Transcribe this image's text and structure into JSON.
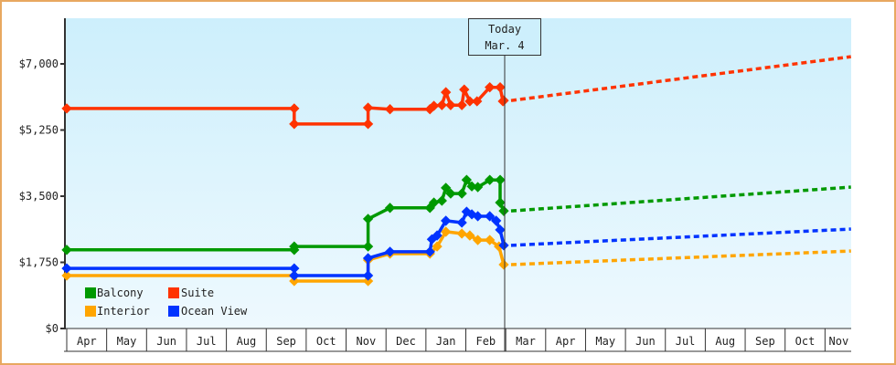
{
  "chart_data": {
    "type": "line",
    "title": "",
    "xlabel": "",
    "ylabel": "",
    "ylim": [
      0,
      7000
    ],
    "y_ticks": [
      {
        "value": 0,
        "label": "$0"
      },
      {
        "value": 1750,
        "label": "$1,750"
      },
      {
        "value": 3500,
        "label": "$3,500"
      },
      {
        "value": 5250,
        "label": "$5,250"
      },
      {
        "value": 7000,
        "label": "$7,000"
      }
    ],
    "x_ticks": [
      "Apr",
      "May",
      "Jun",
      "Jul",
      "Aug",
      "Sep",
      "Oct",
      "Nov",
      "Dec",
      "Jan",
      "Feb",
      "Mar",
      "Apr",
      "May",
      "Jun",
      "Jul",
      "Aug",
      "Sep",
      "Oct",
      "Nov"
    ],
    "x_range_months": [
      0,
      19.7
    ],
    "grid": false,
    "legend_position": "inside-bottom-left",
    "today_marker": {
      "line1": "Today",
      "line2": "Mar. 4",
      "x_month": 10.95
    },
    "colors": {
      "Balcony": "#009900",
      "Suite": "#ff3300",
      "Interior": "#ffa500",
      "Ocean View": "#0033ff"
    },
    "series": [
      {
        "name": "Suite",
        "step": true,
        "points": [
          [
            0,
            5820
          ],
          [
            5.7,
            5820
          ],
          [
            5.7,
            5410
          ],
          [
            7.55,
            5410
          ],
          [
            7.55,
            5840
          ],
          [
            8.1,
            5800
          ],
          [
            9.1,
            5800
          ],
          [
            9.2,
            5890
          ],
          [
            9.4,
            5910
          ],
          [
            9.5,
            6250
          ],
          [
            9.62,
            5910
          ],
          [
            9.9,
            5910
          ],
          [
            9.96,
            6320
          ],
          [
            10.1,
            6010
          ],
          [
            10.28,
            6010
          ],
          [
            10.6,
            6380
          ],
          [
            10.86,
            6380
          ],
          [
            10.93,
            6010
          ],
          [
            10.95,
            6030
          ]
        ],
        "forecast": [
          [
            10.95,
            6030
          ],
          [
            19.65,
            7190
          ]
        ]
      },
      {
        "name": "Balcony",
        "step": true,
        "points": [
          [
            0,
            2080
          ],
          [
            5.7,
            2080
          ],
          [
            5.7,
            2170
          ],
          [
            7.55,
            2170
          ],
          [
            7.55,
            2900
          ],
          [
            8.1,
            3190
          ],
          [
            9.1,
            3190
          ],
          [
            9.2,
            3330
          ],
          [
            9.4,
            3380
          ],
          [
            9.5,
            3720
          ],
          [
            9.62,
            3570
          ],
          [
            9.9,
            3570
          ],
          [
            10.02,
            3930
          ],
          [
            10.15,
            3760
          ],
          [
            10.3,
            3740
          ],
          [
            10.6,
            3930
          ],
          [
            10.86,
            3930
          ],
          [
            10.86,
            3330
          ],
          [
            10.95,
            3110
          ]
        ],
        "forecast": [
          [
            10.95,
            3110
          ],
          [
            19.65,
            3740
          ]
        ]
      },
      {
        "name": "Ocean View",
        "step": true,
        "points": [
          [
            0,
            1590
          ],
          [
            5.7,
            1590
          ],
          [
            5.7,
            1400
          ],
          [
            7.55,
            1400
          ],
          [
            7.55,
            1860
          ],
          [
            8.1,
            2030
          ],
          [
            9.1,
            2030
          ],
          [
            9.15,
            2360
          ],
          [
            9.28,
            2460
          ],
          [
            9.5,
            2850
          ],
          [
            9.9,
            2800
          ],
          [
            10.02,
            3090
          ],
          [
            10.15,
            3020
          ],
          [
            10.3,
            2970
          ],
          [
            10.6,
            2970
          ],
          [
            10.76,
            2850
          ],
          [
            10.86,
            2610
          ],
          [
            10.95,
            2200
          ]
        ],
        "forecast": [
          [
            10.95,
            2200
          ],
          [
            19.65,
            2630
          ]
        ]
      },
      {
        "name": "Interior",
        "step": true,
        "points": [
          [
            0,
            1400
          ],
          [
            5.7,
            1400
          ],
          [
            5.7,
            1255
          ],
          [
            7.55,
            1255
          ],
          [
            7.55,
            1810
          ],
          [
            8.1,
            1980
          ],
          [
            9.1,
            1980
          ],
          [
            9.28,
            2170
          ],
          [
            9.5,
            2560
          ],
          [
            9.9,
            2510
          ],
          [
            10.1,
            2460
          ],
          [
            10.3,
            2340
          ],
          [
            10.6,
            2340
          ],
          [
            10.83,
            2170
          ],
          [
            10.95,
            1690
          ]
        ],
        "forecast": [
          [
            10.95,
            1690
          ],
          [
            19.65,
            2050
          ]
        ]
      }
    ],
    "legend": [
      {
        "name": "Balcony",
        "color": "#009900"
      },
      {
        "name": "Suite",
        "color": "#ff3300"
      },
      {
        "name": "Interior",
        "color": "#ffa500"
      },
      {
        "name": "Ocean View",
        "color": "#0033ff"
      }
    ]
  },
  "chart": {
    "today_label_line1": "Today",
    "today_label_line2": "Mar. 4",
    "legend": {
      "balcony": "Balcony",
      "suite": "Suite",
      "interior": "Interior",
      "ocean_view": "Ocean View"
    },
    "y_labels": {
      "y0": "$0",
      "y1750": "$1,750",
      "y3500": "$3,500",
      "y5250": "$5,250",
      "y7000": "$7,000"
    },
    "months": [
      "Apr",
      "May",
      "Jun",
      "Jul",
      "Aug",
      "Sep",
      "Oct",
      "Nov",
      "Dec",
      "Jan",
      "Feb",
      "Mar",
      "Apr",
      "May",
      "Jun",
      "Jul",
      "Aug",
      "Sep",
      "Oct",
      "Nov"
    ]
  }
}
